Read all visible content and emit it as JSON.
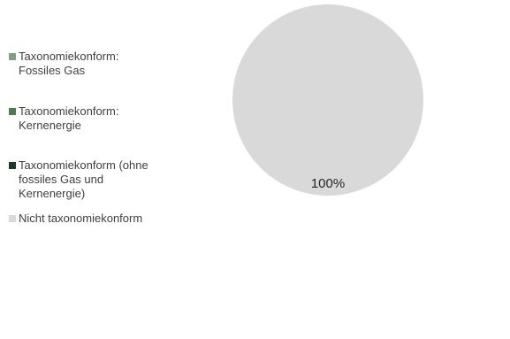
{
  "chart_data": {
    "type": "pie",
    "title": "",
    "categories": [
      "Taxonomiekonform: Fossiles Gas",
      "Taxonomiekonform: Kernenergie",
      "Taxonomiekonform (ohne fossiles Gas und Kernenergie)",
      "Nicht taxonomiekonform"
    ],
    "values": [
      0,
      0,
      0,
      100
    ],
    "data_labels": [
      "",
      "",
      "",
      "100%"
    ],
    "colors": [
      "#7f9f82",
      "#4f7a56",
      "#1f3a22",
      "#d9d9d9"
    ],
    "legend_placement": "left"
  },
  "legend": {
    "items": [
      {
        "label": "Taxonomiekonform:\nFossiles Gas",
        "color": "#7f9f82"
      },
      {
        "label": "Taxonomiekonform:\nKernenergie",
        "color": "#4f7a56"
      },
      {
        "label": "Taxonomiekonform (ohne\nfossiles Gas und\nKernenergie)",
        "color": "#1f3a22"
      },
      {
        "label": "Nicht taxonomiekonform",
        "color": "#d9d9d9"
      }
    ]
  }
}
